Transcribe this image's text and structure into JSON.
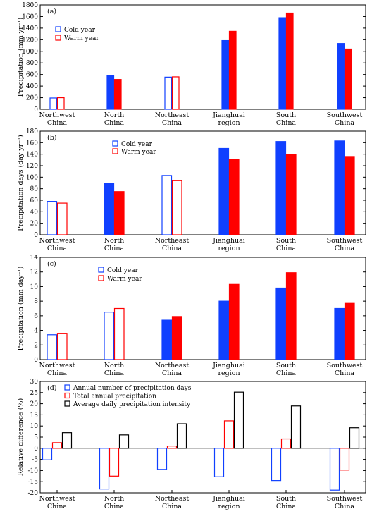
{
  "colors": {
    "cold": "#1040ff",
    "warm": "#ff0000",
    "black": "#000000"
  },
  "chart_data": [
    {
      "type": "bar",
      "panel_label": "(a)",
      "ylabel": "Precipitation (mm yr⁻¹)",
      "ylim": [
        0,
        1800
      ],
      "yticks": [
        0,
        200,
        400,
        600,
        800,
        1000,
        1200,
        1400,
        1600,
        1800
      ],
      "categories": [
        "Northwest China",
        "North China",
        "Northeast China",
        "Jianghuai region",
        "South China",
        "Southwest China"
      ],
      "series": [
        {
          "name": "Cold year",
          "values": [
            195,
            585,
            555,
            1185,
            1580,
            1135
          ],
          "filled": [
            false,
            true,
            false,
            true,
            true,
            true
          ]
        },
        {
          "name": "Warm year",
          "values": [
            200,
            515,
            560,
            1345,
            1660,
            1040
          ],
          "filled": [
            false,
            true,
            false,
            true,
            true,
            true
          ]
        }
      ],
      "legend": "upper-left"
    },
    {
      "type": "bar",
      "panel_label": "(b)",
      "ylabel": "Precipitation days (day yr⁻¹)",
      "ylim": [
        0,
        180
      ],
      "yticks": [
        0,
        20,
        40,
        60,
        80,
        100,
        120,
        140,
        160,
        180
      ],
      "categories": [
        "Northwest China",
        "North China",
        "Northeast China",
        "Jianghuai region",
        "South China",
        "Southwest China"
      ],
      "series": [
        {
          "name": "Cold year",
          "values": [
            58,
            89,
            103,
            150,
            162,
            163
          ],
          "filled": [
            false,
            true,
            false,
            true,
            true,
            true
          ]
        },
        {
          "name": "Warm year",
          "values": [
            55,
            75,
            94,
            131,
            140,
            136
          ],
          "filled": [
            false,
            true,
            false,
            true,
            true,
            true
          ]
        }
      ],
      "legend": "upper-center"
    },
    {
      "type": "bar",
      "panel_label": "(c)",
      "ylabel": "Precipitation (mm day⁻¹)",
      "ylim": [
        0,
        14
      ],
      "yticks": [
        0,
        2,
        4,
        6,
        8,
        10,
        12,
        14
      ],
      "categories": [
        "Northwest China",
        "North China",
        "Northeast China",
        "Jianghuai region",
        "South China",
        "Southwest China"
      ],
      "series": [
        {
          "name": "Cold year",
          "values": [
            3.4,
            6.5,
            5.4,
            8.0,
            9.8,
            7.0
          ],
          "filled": [
            false,
            false,
            true,
            true,
            true,
            true
          ]
        },
        {
          "name": "Warm year",
          "values": [
            3.6,
            7.0,
            5.9,
            10.3,
            11.9,
            7.7
          ],
          "filled": [
            false,
            false,
            true,
            true,
            true,
            true
          ]
        }
      ],
      "legend": "upper-center"
    },
    {
      "type": "bar",
      "panel_label": "(d)",
      "ylabel": "Relative difference (%)",
      "ylim": [
        -20,
        30
      ],
      "yticks": [
        -20,
        -15,
        -10,
        -5,
        0,
        5,
        10,
        15,
        20,
        25,
        30
      ],
      "categories": [
        "Northwest China",
        "North China",
        "Northeast China",
        "Jianghuai region",
        "South China",
        "Southwest China"
      ],
      "series": [
        {
          "name": "Annual number of precipitation days",
          "values": [
            -5.2,
            -18.3,
            -9.5,
            -12.8,
            -14.5,
            -18.8
          ],
          "filled": [
            false,
            false,
            false,
            false,
            false,
            false
          ]
        },
        {
          "name": "Total annual precipitation",
          "values": [
            2.5,
            -12.5,
            1.0,
            12.3,
            4.2,
            -9.8
          ],
          "filled": [
            false,
            false,
            false,
            false,
            false,
            false
          ]
        },
        {
          "name": "Average daily precipitation intensity",
          "values": [
            7.0,
            6.0,
            11.0,
            25.2,
            19.0,
            9.2
          ],
          "filled": [
            false,
            false,
            false,
            false,
            false,
            false
          ]
        }
      ],
      "legend": "upper-left"
    }
  ]
}
